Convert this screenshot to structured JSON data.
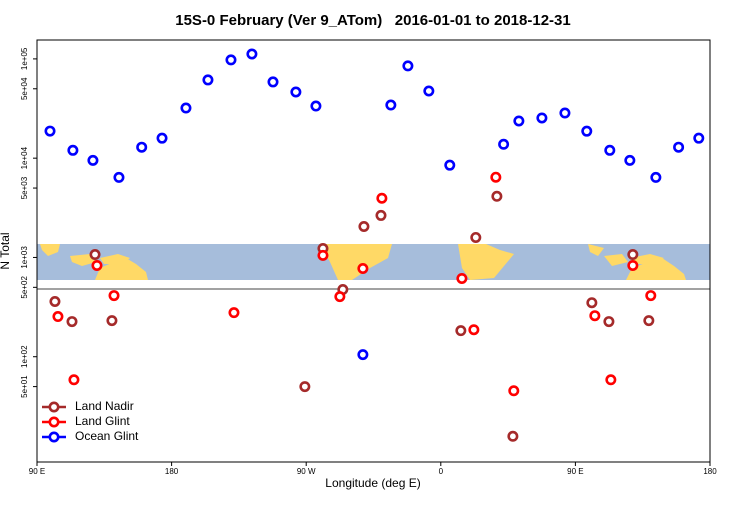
{
  "chart_data": {
    "type": "scatter",
    "title": "15S-0 February (Ver 9_ATom)   2016-01-01 to 2018-12-31",
    "x_label": "Longitude (deg E)",
    "y_label": "N Total",
    "log_y": true,
    "legend": "bottom-left",
    "xlim": [
      90,
      540
    ],
    "ylim": [
      8.7,
      155000
    ],
    "xticks": [
      {
        "value": 90,
        "label": "90 E"
      },
      {
        "value": 180,
        "label": "180"
      },
      {
        "value": 270,
        "label": "90 W"
      },
      {
        "value": 360,
        "label": "0"
      },
      {
        "value": 450,
        "label": "90 E"
      },
      {
        "value": 540,
        "label": "180"
      }
    ],
    "yticks": [
      {
        "value": 50,
        "label": "5e+01"
      },
      {
        "value": 100,
        "label": "1e+02"
      },
      {
        "value": 500,
        "label": "5e+02"
      },
      {
        "value": 1000,
        "label": "1e+03"
      },
      {
        "value": 5000,
        "label": "5e+03"
      },
      {
        "value": 10000,
        "label": "1e+04"
      },
      {
        "value": 50000,
        "label": "5e+04"
      },
      {
        "value": 100000,
        "label": "1e+05"
      }
    ],
    "series": [
      {
        "name": "Land Nadir",
        "color": "#a52a2a",
        "x": [
          102,
          113.4,
          128.8,
          140.1,
          269.1,
          281.2,
          294.5,
          308.6,
          320,
          373.4,
          383.4,
          397.5,
          408.2,
          461,
          472.4,
          488.4,
          499.1
        ],
        "values": [
          360,
          226,
          1070,
          231,
          50,
          1230,
          475,
          2050,
          2650,
          183,
          1590,
          4130,
          15.8,
          350,
          226,
          1070,
          231
        ]
      },
      {
        "name": "Land Glint",
        "color": "#ff0000",
        "x": [
          104,
          114.7,
          130.1,
          141.5,
          221.7,
          281.2,
          292.5,
          307.9,
          320.6,
          374.1,
          382.1,
          396.8,
          408.8,
          463,
          473.7,
          488.4,
          500.4
        ],
        "values": [
          254,
          58.6,
          830,
          413,
          278,
          1050,
          403,
          774,
          3950,
          614,
          187,
          6430,
          45.4,
          259,
          58.6,
          830,
          413
        ]
      },
      {
        "name": "Ocean Glint",
        "color": "#0000ff",
        "x": [
          98.7,
          114,
          127.4,
          144.8,
          160,
          173.6,
          189.6,
          204.3,
          219.7,
          233.7,
          247.8,
          263.1,
          276.5,
          307.9,
          326.6,
          338,
          352,
          366,
          402,
          412.2,
          427.6,
          443,
          457.6,
          473,
          486.4,
          503.8,
          519,
          532.5
        ],
        "values": [
          18750,
          12000,
          9500,
          6400,
          12900,
          15900,
          32000,
          61400,
          97700,
          112000,
          58600,
          46400,
          33500,
          105,
          34300,
          85000,
          47500,
          8500,
          13800,
          23700,
          25400,
          28500,
          18700,
          12000,
          9500,
          6400,
          12900,
          15900
        ]
      }
    ]
  }
}
